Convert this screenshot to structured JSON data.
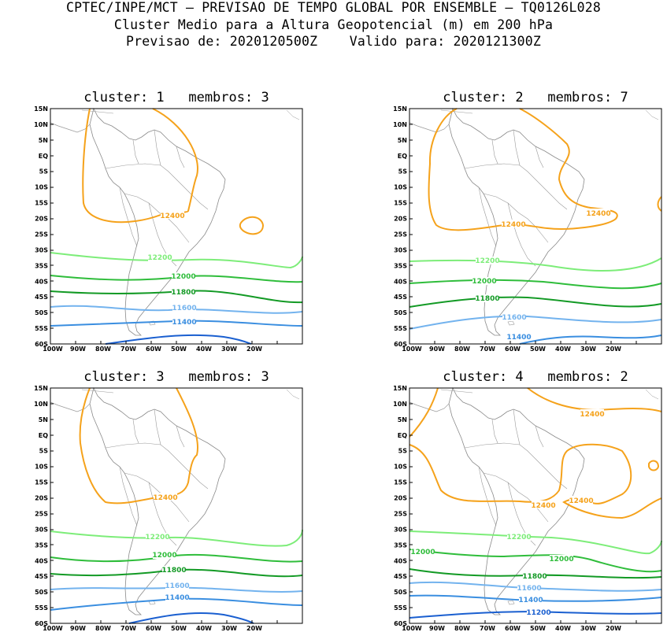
{
  "header": {
    "line1": "CPTEC/INPE/MCT – PREVISAO DE TEMPO GLOBAL POR ENSEMBLE – TQ0126L028",
    "line2": "Cluster Medio para a Altura Geopotencial (m) em 200 hPa",
    "line3": "Previsao de: 2020120500Z    Valido para: 2020121300Z"
  },
  "axes": {
    "lat_labels": [
      "15N",
      "10N",
      "5N",
      "EQ",
      "5S",
      "10S",
      "15S",
      "20S",
      "25S",
      "30S",
      "35S",
      "40S",
      "45S",
      "50S",
      "55S",
      "60S"
    ],
    "lon_labels": [
      "100W",
      "90W",
      "80W",
      "70W",
      "60W",
      "50W",
      "40W",
      "30W",
      "20W"
    ]
  },
  "colors": {
    "c12400": "#f5a21b",
    "c12200": "#7ded79",
    "c12000": "#2fbd3b",
    "c11800": "#139a25",
    "c11600": "#73b3ee",
    "c11400": "#3a8ee0",
    "c11200": "#1a5fd0"
  },
  "panels": [
    {
      "title": "cluster: 1   membros: 3",
      "labels": {
        "l12400": "12400",
        "l12200": "12200",
        "l12000": "12000",
        "l11800": "11800",
        "l11600": "11600",
        "l11400": "11400"
      }
    },
    {
      "title": "cluster: 2   membros: 7",
      "labels": {
        "l12400a": "12400",
        "l12400b": "12400",
        "l12200": "12200",
        "l12000": "12000",
        "l11800": "11800",
        "l11600": "11600",
        "l11400": "11400"
      }
    },
    {
      "title": "cluster: 3   membros: 3",
      "labels": {
        "l12400": "12400",
        "l12200": "12200",
        "l12000": "12000",
        "l11800": "11800",
        "l11600": "11600",
        "l11400": "11400"
      }
    },
    {
      "title": "cluster: 4   membros: 2",
      "labels": {
        "l12400a": "12400",
        "l12400b": "12400",
        "l12400c": "12400",
        "l12200": "12200",
        "l12000a": "12000",
        "l12000b": "12000",
        "l11800": "11800",
        "l11600": "11600",
        "l11400": "11400",
        "l11200": "11200"
      }
    }
  ]
}
